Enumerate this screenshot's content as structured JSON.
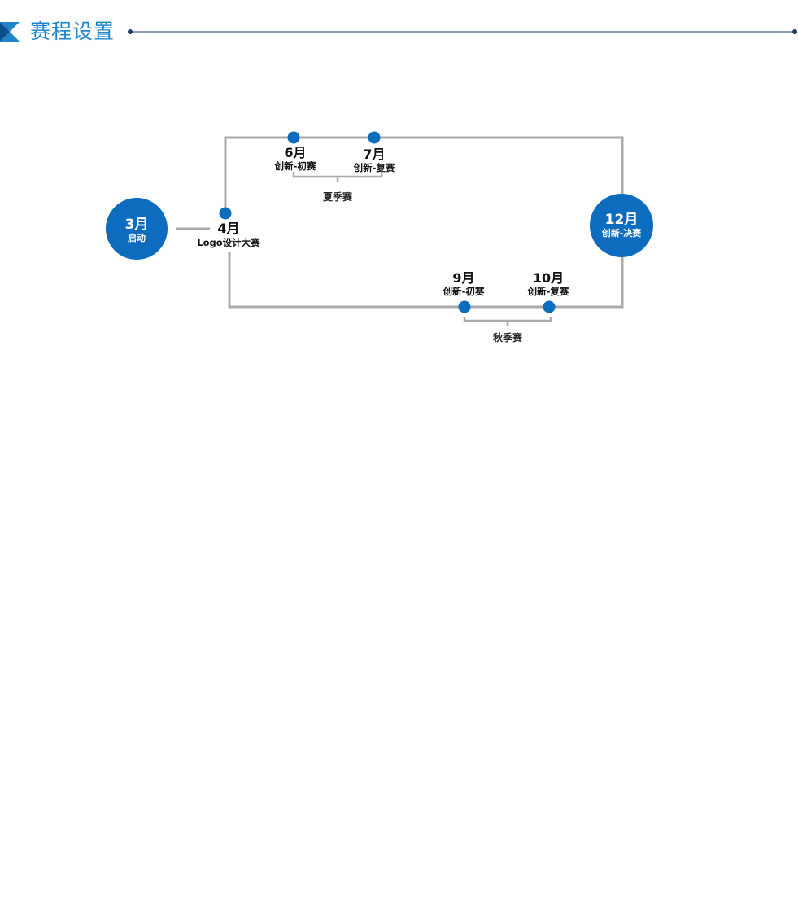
{
  "header": {
    "title": "赛程设置",
    "accent_color": "#1e86c8",
    "icon": "chevron-logo-icon",
    "rule_color": "#1a3a6b"
  },
  "timeline": {
    "line_color": "#aaaaaa",
    "node_color": "#0d6cbd",
    "start": {
      "month": "3月",
      "label": "启动"
    },
    "logo": {
      "month": "4月",
      "label": "Logo设计大赛"
    },
    "summer": {
      "season": "夏季赛",
      "events": [
        {
          "month": "6月",
          "label": "创新-初赛"
        },
        {
          "month": "7月",
          "label": "创新-复赛"
        }
      ]
    },
    "autumn": {
      "season": "秋季赛",
      "events": [
        {
          "month": "9月",
          "label": "创新-初赛"
        },
        {
          "month": "10月",
          "label": "创新-复赛"
        }
      ]
    },
    "final": {
      "month": "12月",
      "label": "创新-决赛"
    }
  }
}
